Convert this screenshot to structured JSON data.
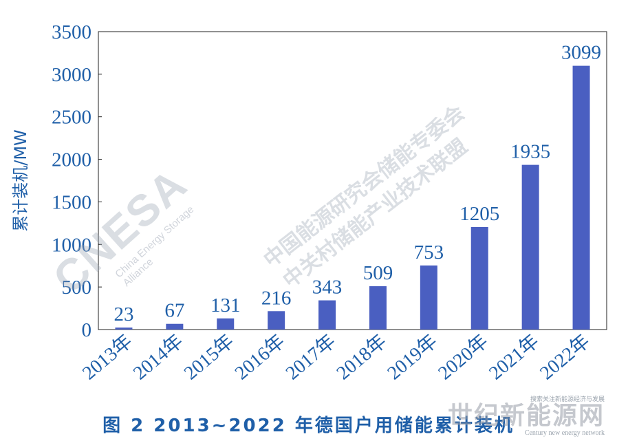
{
  "chart_data": {
    "type": "bar",
    "categories": [
      "2013年",
      "2014年",
      "2015年",
      "2016年",
      "2017年",
      "2018年",
      "2019年",
      "2020年",
      "2021年",
      "2022年"
    ],
    "values": [
      23,
      67,
      131,
      216,
      343,
      509,
      753,
      1205,
      1935,
      3099
    ],
    "data_labels": [
      "23",
      "67",
      "131",
      "216",
      "343",
      "509",
      "753",
      "1205",
      "1935",
      "3099"
    ],
    "ylabel": "累计装机/MW",
    "ylim": [
      0,
      3500
    ],
    "yticks": [
      0,
      500,
      1000,
      1500,
      2000,
      2500,
      3000,
      3500
    ],
    "grid": false,
    "bar_color": "#4a5fc1",
    "text_color": "#1f5fa8"
  },
  "caption": "图 2  2013~2022 年德国户用储能累计装机",
  "watermark": {
    "logo": "CNESA",
    "logo_sub": "China Energy Storage Alliance",
    "line1": "中国能源研究会储能专委会",
    "line2": "中关村储能产业技术联盟"
  },
  "corner_site": {
    "tagline": "搜索关注新能源经济与发展",
    "name": "世纪新能源网",
    "english": "Century new energy network"
  }
}
